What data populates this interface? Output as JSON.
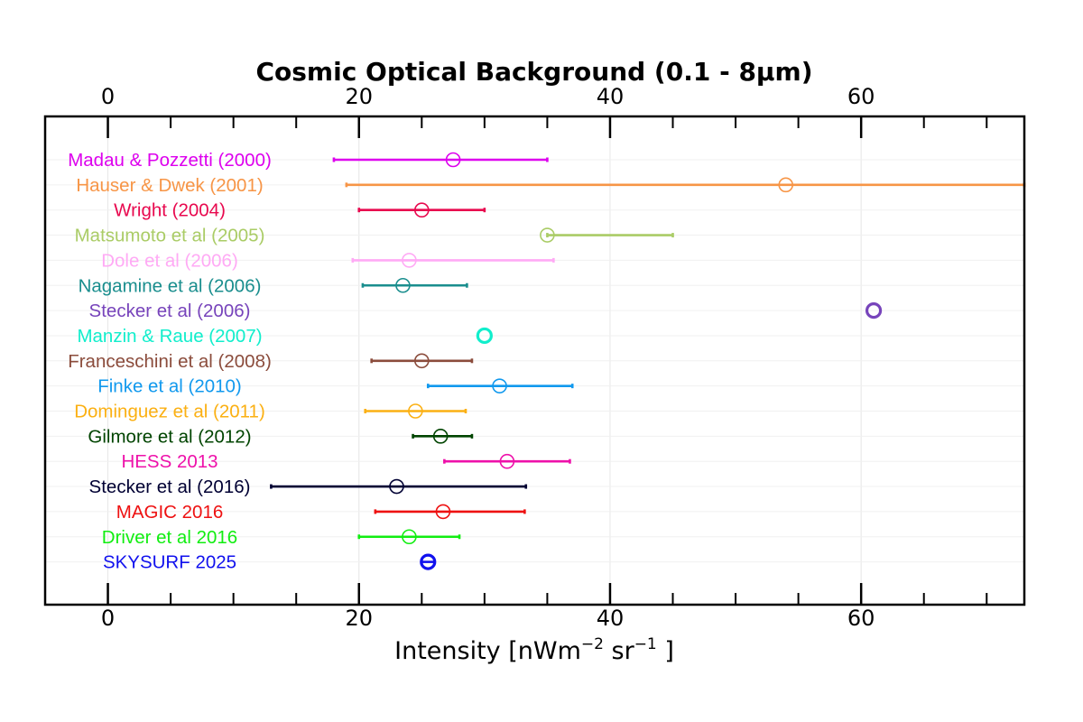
{
  "chart_data": {
    "type": "errorbar",
    "title": "Cosmic Optical Background (0.1 - 8µm)",
    "xlabel": {
      "prefix": "Intensity [nWm",
      "exp1": "−2",
      "mid": " sr",
      "exp2": "−1",
      "suffix": " ]"
    },
    "ylabel": "",
    "xlim": [
      -5,
      73
    ],
    "major_ticks": [
      0,
      20,
      40,
      60
    ],
    "major_tick_labels": [
      "0",
      "20",
      "40",
      "60"
    ],
    "minor_ticks": [
      5,
      10,
      15,
      25,
      30,
      35,
      45,
      50,
      55,
      65,
      70
    ],
    "grid": true,
    "legend": "none",
    "series": [
      {
        "name": "Madau & Pozzetti (2000)",
        "color": "#dd00ee",
        "value": 27.5,
        "low": 18.0,
        "high": 35.0,
        "bold": false
      },
      {
        "name": "Hauser & Dwek (2001)",
        "color": "#f79546",
        "value": 54.0,
        "low": 19.0,
        "high": 73.0,
        "bold": false
      },
      {
        "name": "Wright (2004)",
        "color": "#e8084e",
        "value": 25.0,
        "low": 20.0,
        "high": 30.0,
        "bold": false
      },
      {
        "name": "Matsumoto et al (2005)",
        "color": "#aacc66",
        "value": 35.0,
        "low": 35.0,
        "high": 45.0,
        "bold": false
      },
      {
        "name": "Dole et al (2006)",
        "color": "#ffaaf5",
        "value": 24.0,
        "low": 19.5,
        "high": 35.5,
        "bold": false
      },
      {
        "name": "Nagamine et al (2006)",
        "color": "#1a8e8e",
        "value": 23.5,
        "low": 20.3,
        "high": 28.6,
        "bold": false
      },
      {
        "name": "Stecker et al (2006)",
        "color": "#7744bb",
        "value": 61.0,
        "low": 61.0,
        "high": 61.0,
        "bold": true
      },
      {
        "name": "Manzin & Raue (2007)",
        "color": "#11eecc",
        "value": 30.0,
        "low": 30.0,
        "high": 30.0,
        "bold": true
      },
      {
        "name": "Franceschini et al (2008)",
        "color": "#8b4c3c",
        "value": 25.0,
        "low": 21.0,
        "high": 29.0,
        "bold": false
      },
      {
        "name": "Finke et al (2010)",
        "color": "#1199ee",
        "value": 31.2,
        "low": 25.5,
        "high": 37.0,
        "bold": false
      },
      {
        "name": "Dominguez et al (2011)",
        "color": "#fbb013",
        "value": 24.5,
        "low": 20.5,
        "high": 28.5,
        "bold": false
      },
      {
        "name": "Gilmore et al (2012)",
        "color": "#004400",
        "value": 26.5,
        "low": 24.3,
        "high": 29.0,
        "bold": false
      },
      {
        "name": "HESS 2013",
        "color": "#ee11aa",
        "value": 31.8,
        "low": 26.8,
        "high": 36.8,
        "bold": false
      },
      {
        "name": "Stecker et al (2016)",
        "color": "#000033",
        "value": 23.0,
        "low": 13.0,
        "high": 33.3,
        "bold": false
      },
      {
        "name": "MAGIC 2016",
        "color": "#ee1111",
        "value": 26.7,
        "low": 21.3,
        "high": 33.2,
        "bold": false
      },
      {
        "name": "Driver et al 2016",
        "color": "#11ee11",
        "value": 24.0,
        "low": 20.0,
        "high": 28.0,
        "bold": false
      },
      {
        "name": "SKYSURF 2025",
        "color": "#1111ee",
        "value": 25.5,
        "low": 25.0,
        "high": 26.0,
        "bold": true
      }
    ]
  }
}
